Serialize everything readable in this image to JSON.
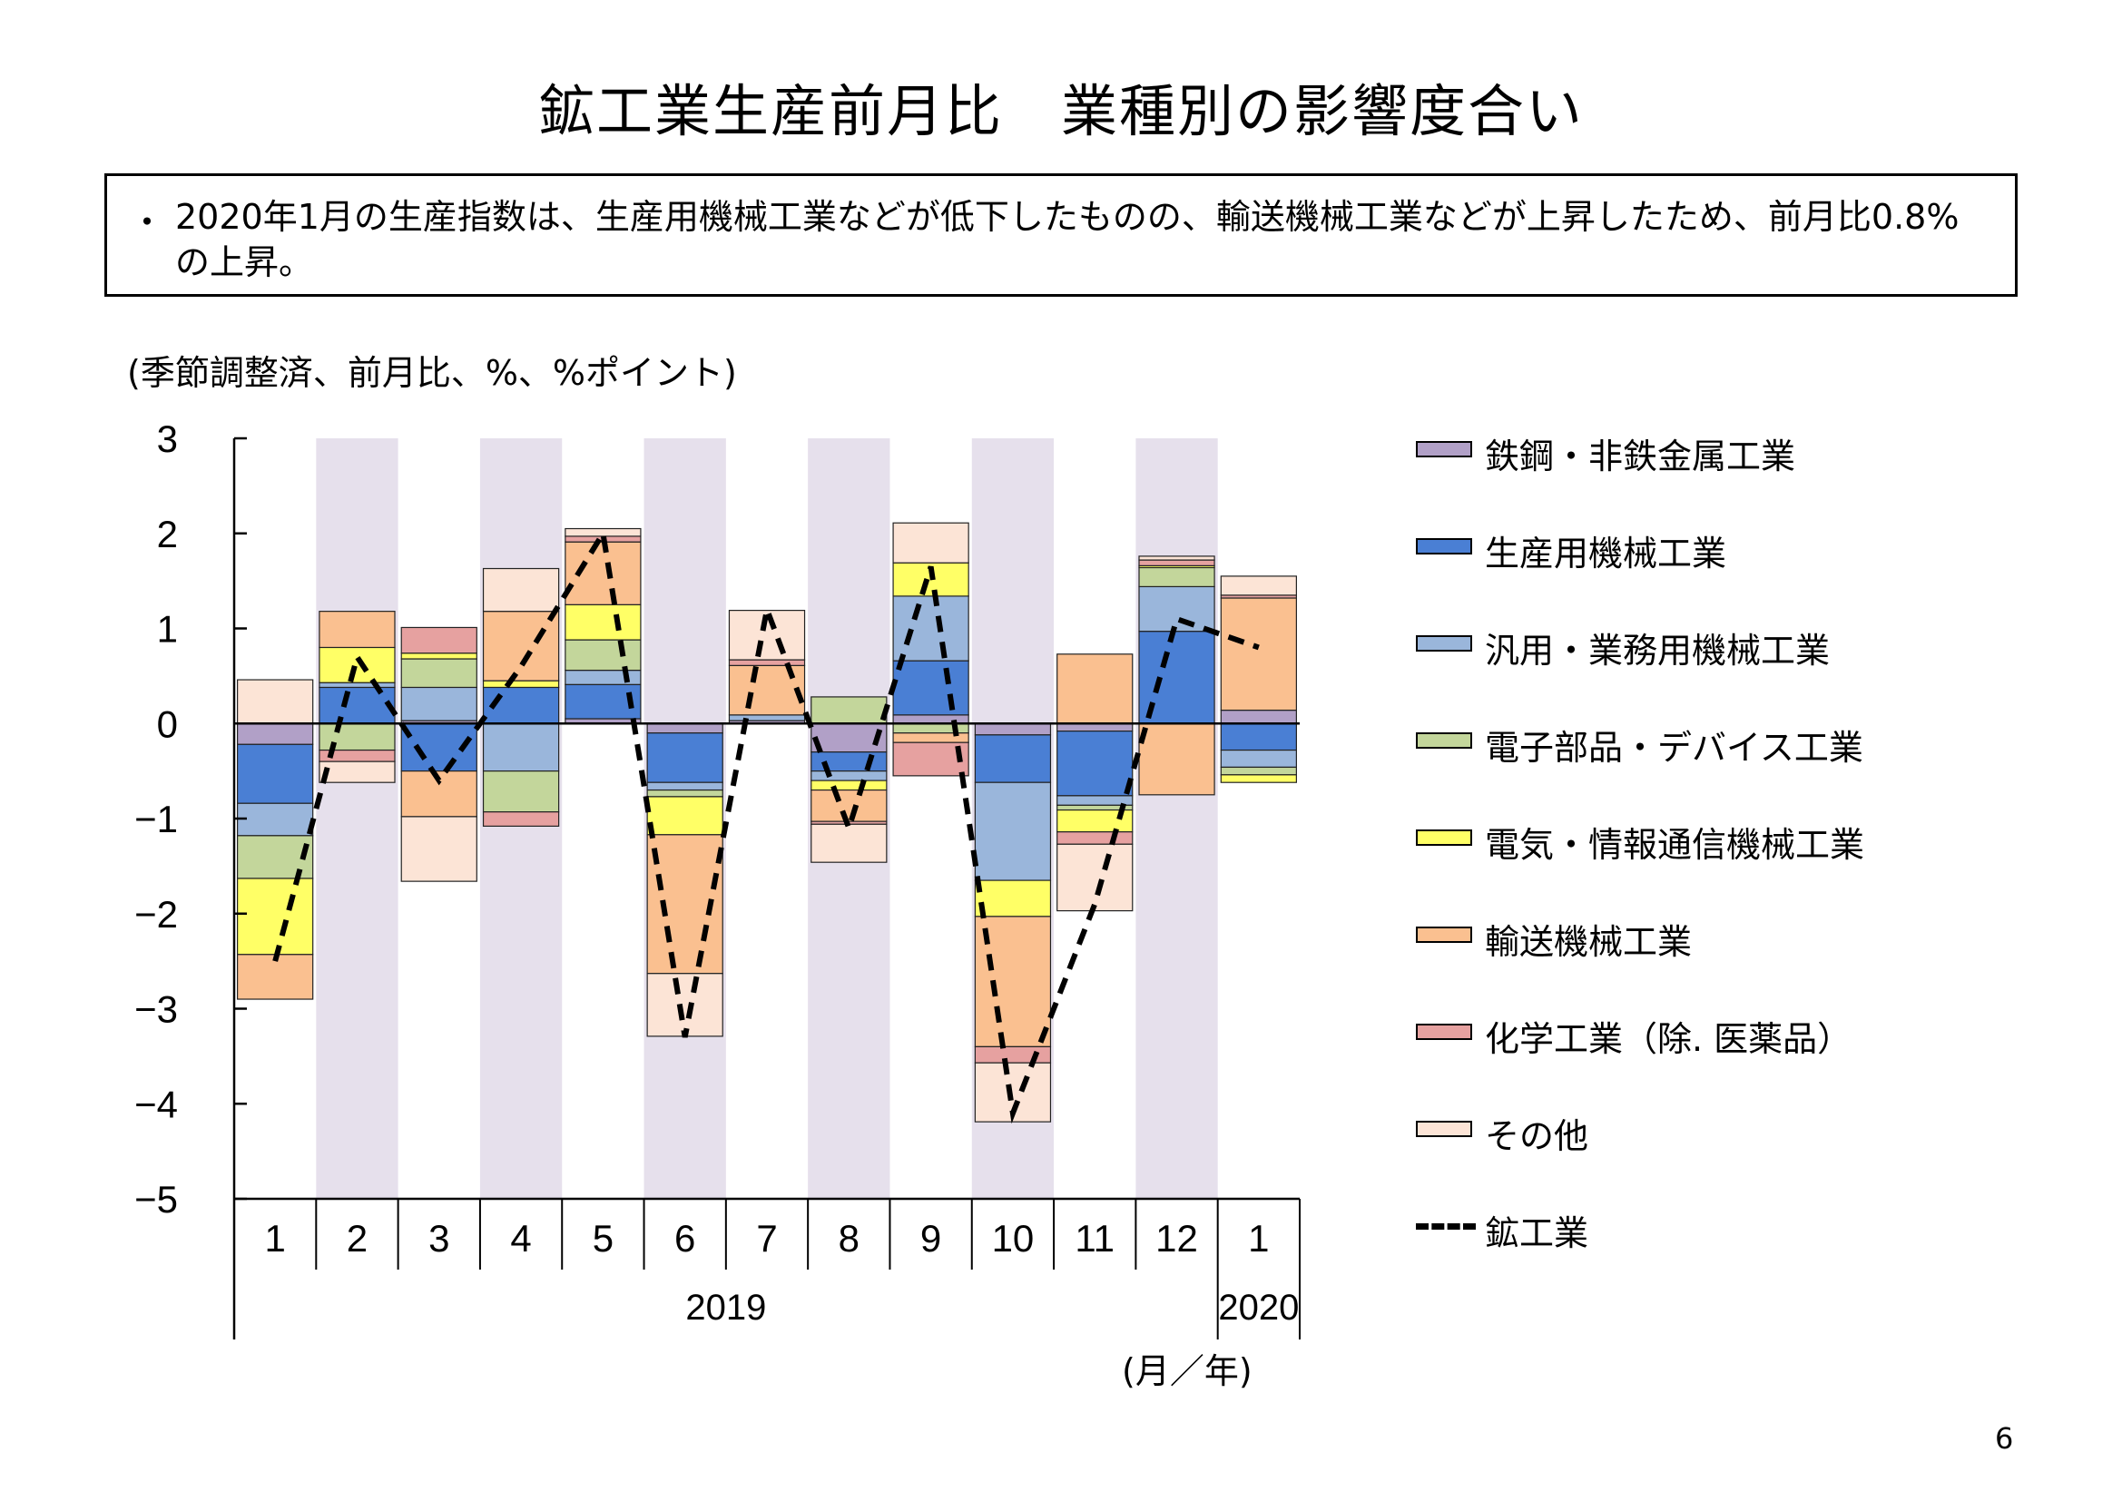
{
  "page": {
    "title": "鉱工業生産前月比　業種別の影響度合い",
    "summary_bullet": "・",
    "summary": "2020年1月の生産指数は、生産用機械工業などが低下したものの、輸送機械工業などが上昇したため、前月比0.8%の上昇。",
    "unit_note": "(季節調整済、前月比、%、%ポイント)",
    "axis_unit": "(月／年)",
    "page_number": "6"
  },
  "chart_data": {
    "type": "bar",
    "title": "",
    "stacked": true,
    "categories": [
      "1",
      "2",
      "3",
      "4",
      "5",
      "6",
      "7",
      "8",
      "9",
      "10",
      "11",
      "12",
      "1"
    ],
    "year_labels": [
      {
        "label": "2019",
        "from": 0,
        "to": 11
      },
      {
        "label": "2020",
        "from": 12,
        "to": 12
      }
    ],
    "shaded_months": [
      1,
      3,
      5,
      7,
      9,
      11
    ],
    "ylim": [
      -5,
      3
    ],
    "yticks": [
      "3",
      "2",
      "1",
      "0",
      "-1",
      "-2",
      "-3",
      "-4",
      "-5"
    ],
    "grid": false,
    "legend_position": "right",
    "colors": {
      "steel": "#B1A0C7",
      "production_machinery": "#4A7FD4",
      "general_machinery": "#9AB6DB",
      "electronic_parts": "#C3D69B",
      "electrical_machinery": "#FFFF66",
      "transport": "#FAC090",
      "chemical": "#E6A1A0",
      "other": "#FCE4D6",
      "mining_line": "#000000",
      "band": "#E6E0EC"
    },
    "series": [
      {
        "key": "steel",
        "name": "鉄鋼・非鉄金属工業",
        "values": [
          -0.22,
          0.0,
          0.03,
          0.0,
          0.05,
          -0.1,
          0.03,
          -0.3,
          0.09,
          -0.12,
          -0.08,
          0.0,
          0.14
        ]
      },
      {
        "key": "production_machinery",
        "name": "生産用機械工業",
        "values": [
          -0.62,
          0.38,
          -0.5,
          0.38,
          0.36,
          -0.52,
          0.0,
          -0.2,
          0.57,
          -0.5,
          -0.68,
          0.97,
          -0.28
        ]
      },
      {
        "key": "general_machinery",
        "name": "汎用・業務用機械工業",
        "values": [
          -0.34,
          0.05,
          0.35,
          -0.5,
          0.15,
          -0.08,
          0.06,
          -0.1,
          0.68,
          -1.03,
          -0.1,
          0.47,
          -0.18
        ]
      },
      {
        "key": "electronic_parts",
        "name": "電子部品・デバイス工業",
        "values": [
          -0.45,
          -0.28,
          0.3,
          -0.43,
          0.32,
          -0.07,
          0.0,
          0.28,
          -0.1,
          0.0,
          -0.05,
          0.2,
          -0.08
        ]
      },
      {
        "key": "electrical_machinery",
        "name": "電気・情報通信機械工業",
        "values": [
          -0.8,
          0.37,
          0.06,
          0.07,
          0.37,
          -0.4,
          0.0,
          -0.1,
          0.35,
          -0.38,
          -0.23,
          0.02,
          -0.08
        ]
      },
      {
        "key": "transport",
        "name": "輸送機械工業",
        "values": [
          -0.47,
          0.38,
          -0.48,
          0.73,
          0.66,
          -1.46,
          0.52,
          -0.33,
          -0.1,
          -1.37,
          0.73,
          -0.75,
          1.18
        ]
      },
      {
        "key": "chemical",
        "name": "化学工業（除. 医薬品）",
        "values": [
          0.0,
          -0.12,
          0.27,
          -0.15,
          0.06,
          0.0,
          0.06,
          -0.03,
          -0.35,
          -0.17,
          -0.13,
          0.06,
          0.03
        ]
      },
      {
        "key": "other",
        "name": "その他",
        "values": [
          0.46,
          -0.22,
          -0.68,
          0.45,
          0.08,
          -0.66,
          0.52,
          -0.4,
          0.42,
          -0.62,
          -0.7,
          0.04,
          0.2
        ]
      }
    ],
    "line": {
      "key": "mining",
      "name": "鉱工業",
      "values": [
        -2.5,
        0.7,
        -0.6,
        0.6,
        2.0,
        -3.3,
        1.2,
        -1.1,
        1.65,
        -4.1,
        -1.9,
        1.1,
        0.8
      ]
    }
  }
}
